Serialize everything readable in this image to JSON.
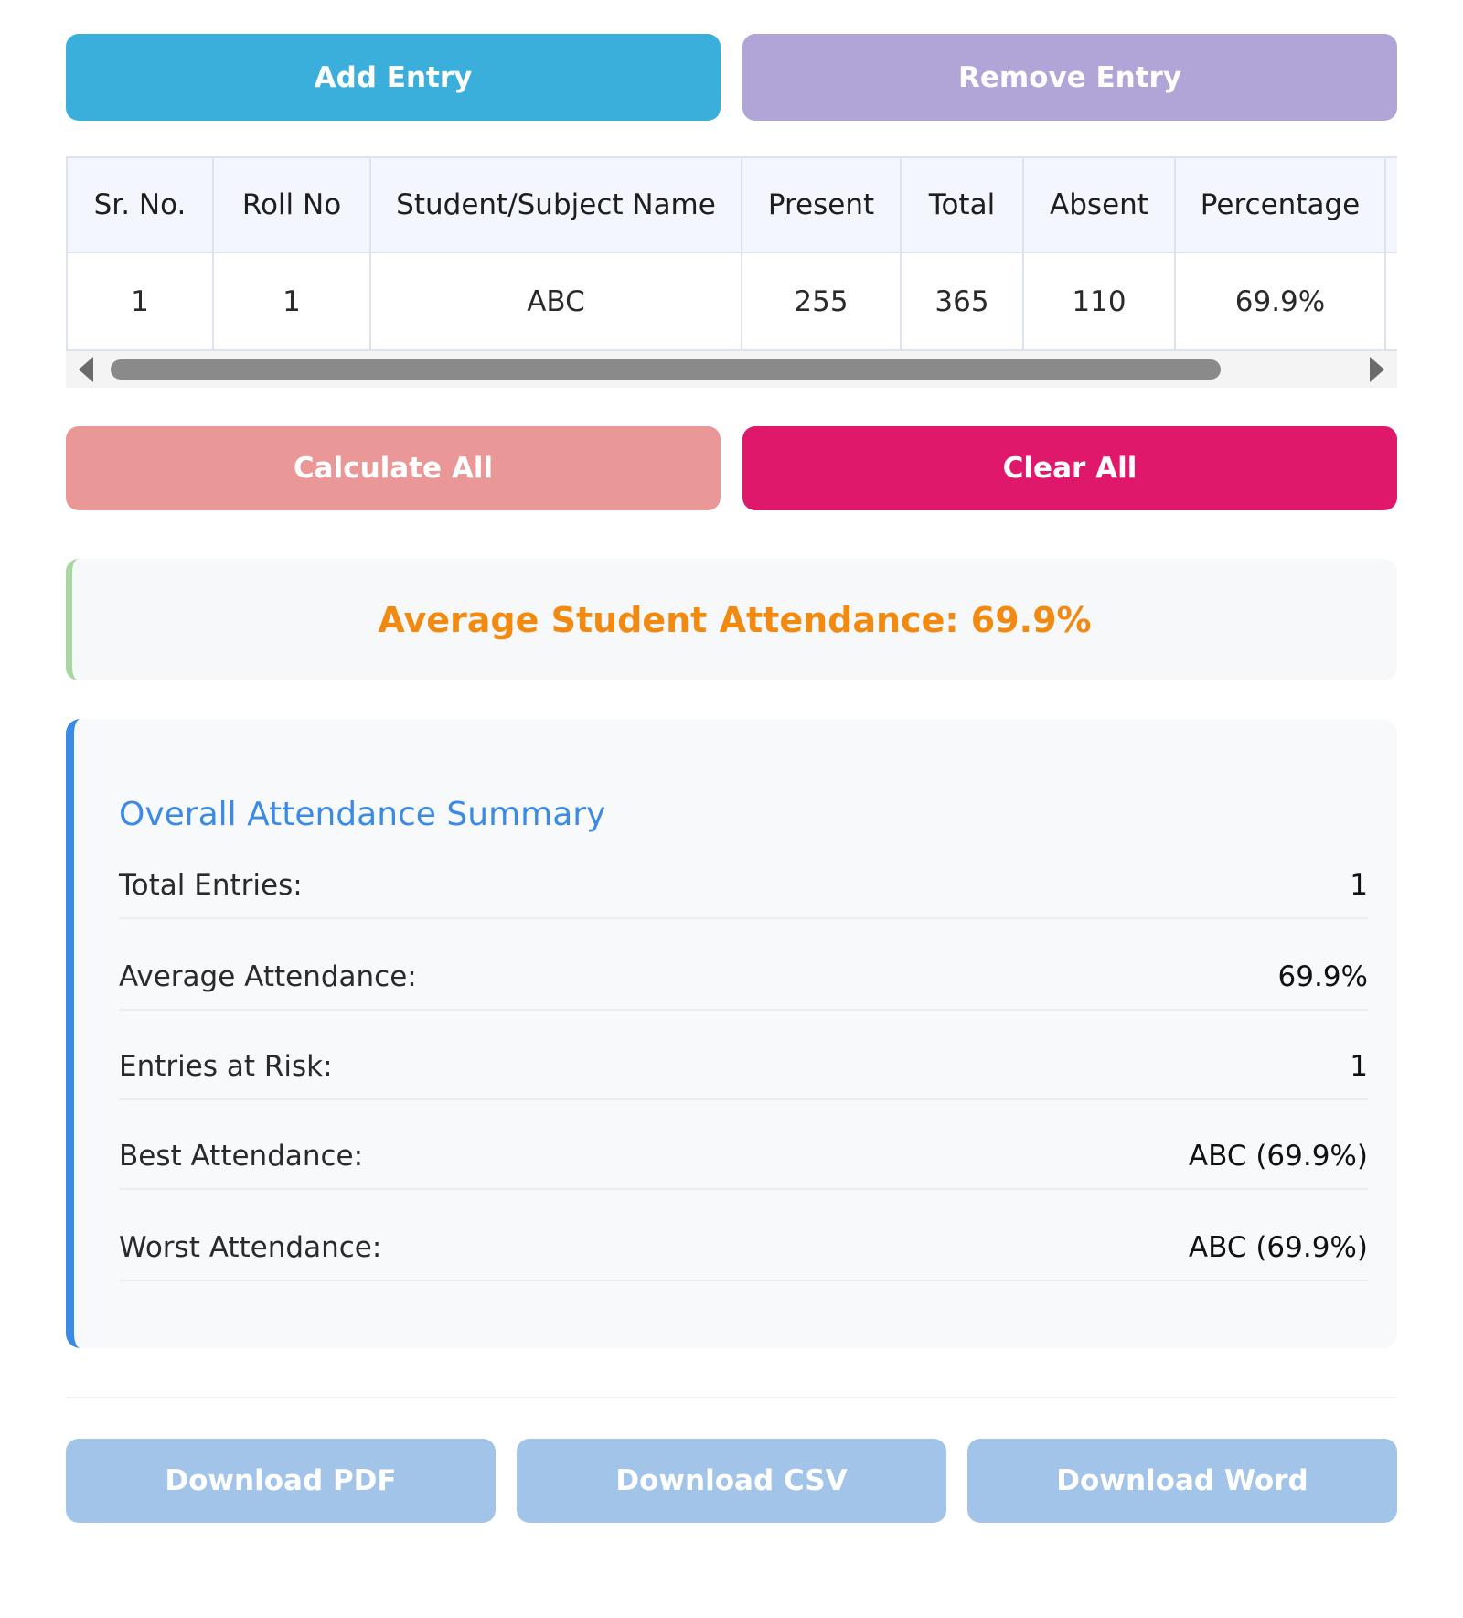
{
  "actions_top": {
    "add_label": "Add Entry",
    "remove_label": "Remove Entry"
  },
  "table": {
    "headers": [
      "Sr. No.",
      "Roll No",
      "Student/Subject Name",
      "Present",
      "Total",
      "Absent",
      "Percentage"
    ],
    "rows": [
      [
        "1",
        "1",
        "ABC",
        "255",
        "365",
        "110",
        "69.9%"
      ]
    ]
  },
  "actions_mid": {
    "calculate_label": "Calculate All",
    "clear_label": "Clear All"
  },
  "average_banner": "Average Student Attendance: 69.9%",
  "summary": {
    "title": "Overall Attendance Summary",
    "items": [
      {
        "label": "Total Entries:",
        "value": "1"
      },
      {
        "label": "Average Attendance:",
        "value": "69.9%"
      },
      {
        "label": "Entries at Risk:",
        "value": "1"
      },
      {
        "label": "Best Attendance:",
        "value": "ABC (69.9%)"
      },
      {
        "label": "Worst Attendance:",
        "value": "ABC (69.9%)"
      }
    ]
  },
  "downloads": {
    "pdf_label": "Download PDF",
    "csv_label": "Download CSV",
    "word_label": "Download Word"
  },
  "colors": {
    "add": "#3aafdc",
    "remove": "#b1a4d6",
    "calculate": "#e99797",
    "clear": "#e0186c",
    "download": "#a2c4e8",
    "average_text": "#f28a12",
    "summary_accent": "#3b8ae6",
    "average_accent": "#a8d6a0"
  }
}
